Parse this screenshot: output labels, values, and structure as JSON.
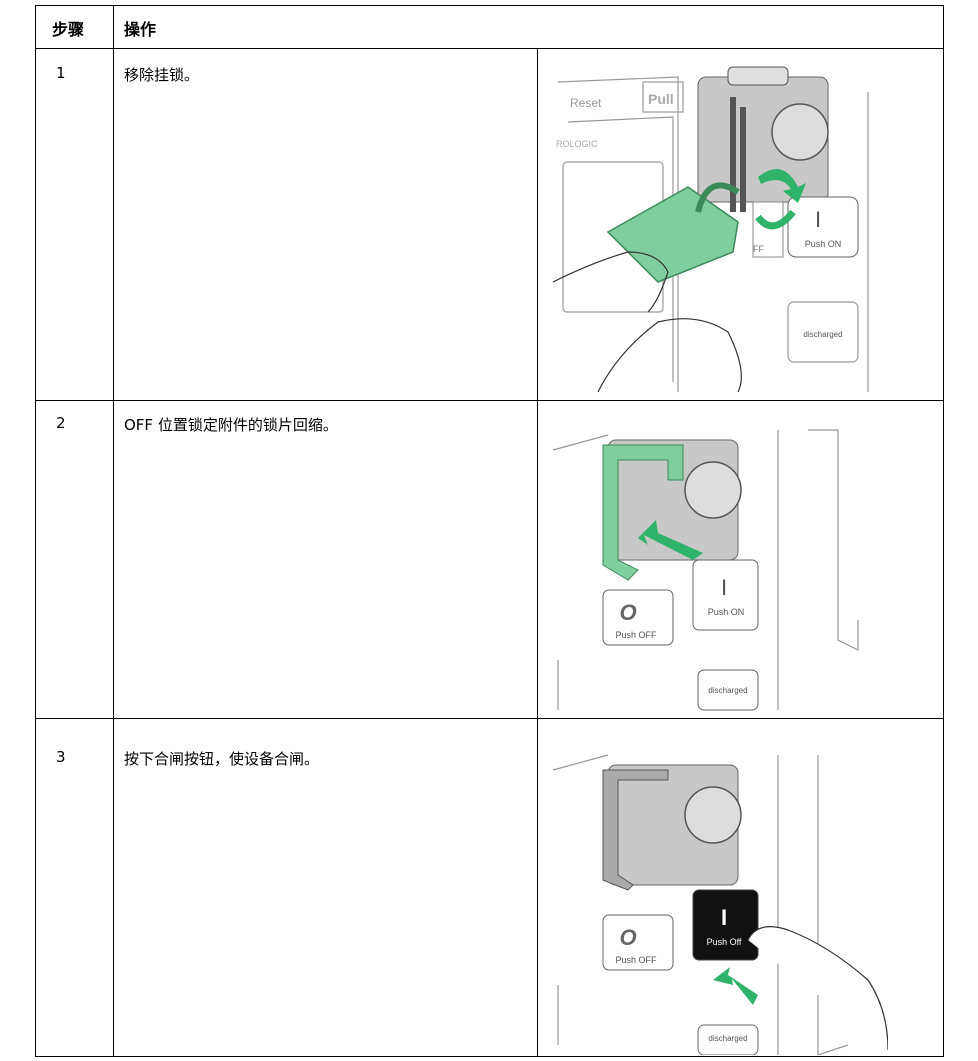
{
  "table": {
    "header": [
      "步骤",
      "操作"
    ],
    "rows": [
      {
        "step": "1",
        "text": "移除挂锁。",
        "image": {
          "labels": [
            "Reset",
            "Pull",
            "ROLOGIC",
            "FF",
            "I",
            "Push ON",
            "discharged"
          ]
        }
      },
      {
        "step": "2",
        "text": "OFF 位置锁定附件的锁片回缩。",
        "image": {
          "labels": [
            "O",
            "Push OFF",
            "I",
            "Push ON",
            "discharged"
          ]
        }
      },
      {
        "step": "3",
        "text": "按下合闸按钮，使设备合闸。",
        "image": {
          "labels": [
            "O",
            "Push OFF",
            "I",
            "Push Off",
            "discharged"
          ]
        }
      }
    ]
  }
}
